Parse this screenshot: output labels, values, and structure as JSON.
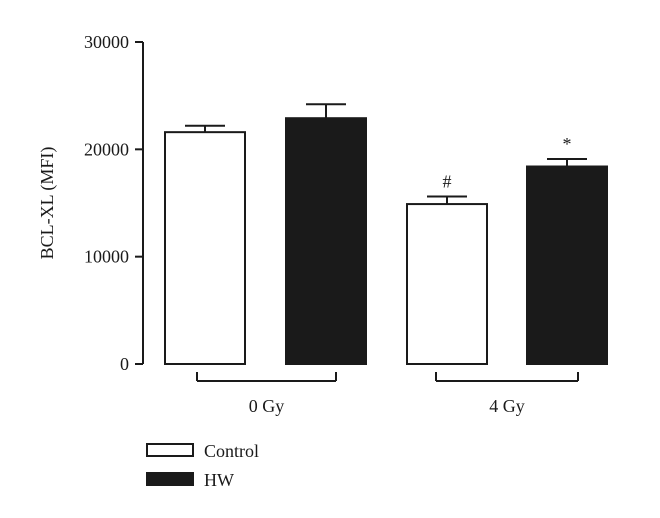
{
  "chart_data": {
    "type": "bar",
    "ylabel": "BCL-XL (MFI)",
    "ylim": [
      0,
      30000
    ],
    "yticks": [
      0,
      10000,
      20000,
      30000
    ],
    "groups": [
      "0 Gy",
      "4 Gy"
    ],
    "grid": false,
    "legend_position": "bottom-left",
    "series": [
      {
        "name": "Control",
        "color": "#ffffff",
        "values": [
          21600,
          14900
        ],
        "errors": [
          600,
          700
        ],
        "annotations": [
          "",
          "#"
        ]
      },
      {
        "name": "HW",
        "color": "#1a1a1a",
        "values": [
          22900,
          18400
        ],
        "errors": [
          1300,
          700
        ],
        "annotations": [
          "",
          "*"
        ]
      }
    ]
  }
}
